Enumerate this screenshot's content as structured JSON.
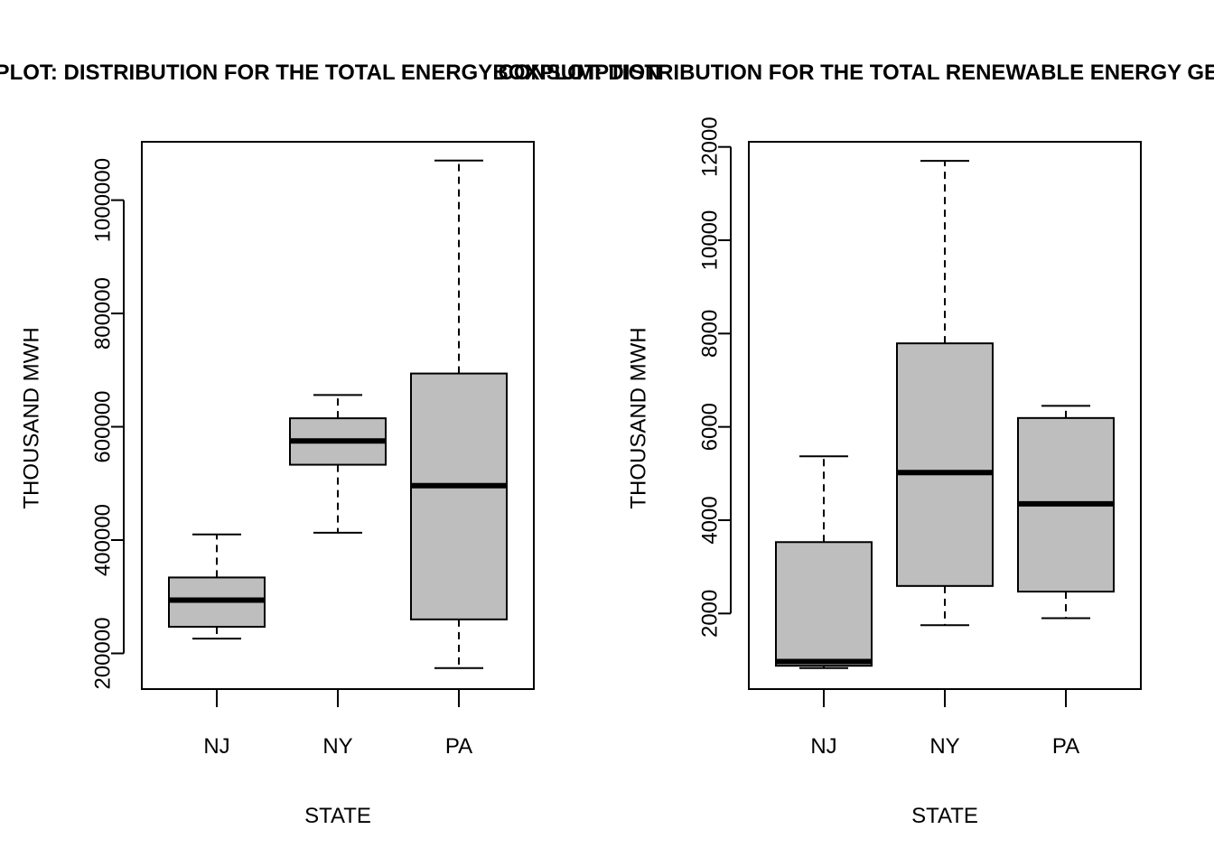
{
  "chart_data": [
    {
      "type": "box",
      "title": "BOXPLOT: DISTRIBUTION FOR THE TOTAL ENERGY CONSUMPTION",
      "xlabel": "STATE",
      "ylabel": "THOUSAND MWH",
      "categories": [
        "NJ",
        "NY",
        "PA"
      ],
      "yticks": [
        200000,
        400000,
        600000,
        800000,
        1000000
      ],
      "yticklabels": [
        "200000",
        "400000",
        "600000",
        "800000",
        "1000000"
      ],
      "ylim": [
        137000,
        1103000
      ],
      "box_fill": "#bebebe",
      "grid": false,
      "boxes": [
        {
          "category": "NJ",
          "min": 226000,
          "q1": 247000,
          "median": 294000,
          "q3": 334000,
          "max": 410000
        },
        {
          "category": "NY",
          "min": 413000,
          "q1": 533000,
          "median": 575000,
          "q3": 615000,
          "max": 656000
        },
        {
          "category": "PA",
          "min": 174000,
          "q1": 260000,
          "median": 496000,
          "q3": 694000,
          "max": 1070000
        }
      ]
    },
    {
      "type": "box",
      "title": "BOXPLOT: DISTRIBUTION FOR THE TOTAL RENEWABLE ENERGY GENERATION",
      "xlabel": "STATE",
      "ylabel": "THOUSAND MWH",
      "categories": [
        "NJ",
        "NY",
        "PA"
      ],
      "yticks": [
        2000,
        4000,
        6000,
        8000,
        10000,
        12000
      ],
      "yticklabels": [
        "2000",
        "4000",
        "6000",
        "8000",
        "10000",
        "12000"
      ],
      "ylim": [
        380,
        12110
      ],
      "box_fill": "#bebebe",
      "grid": false,
      "boxes": [
        {
          "category": "NJ",
          "min": 830,
          "q1": 880,
          "median": 970,
          "q3": 3530,
          "max": 5370
        },
        {
          "category": "NY",
          "min": 1750,
          "q1": 2590,
          "median": 5020,
          "q3": 7790,
          "max": 11700
        },
        {
          "category": "PA",
          "min": 1900,
          "q1": 2470,
          "median": 4350,
          "q3": 6190,
          "max": 6450
        }
      ]
    }
  ]
}
